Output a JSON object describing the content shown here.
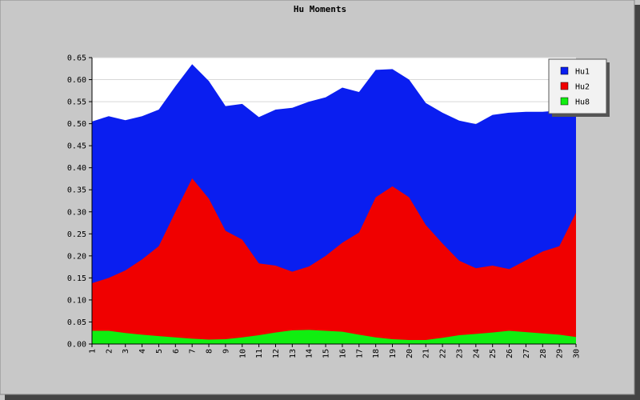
{
  "chart_data": {
    "type": "area",
    "title": "Hu Moments",
    "xlabel": "",
    "ylabel": "",
    "x": [
      1,
      2,
      3,
      4,
      5,
      6,
      7,
      8,
      9,
      10,
      11,
      12,
      13,
      14,
      15,
      16,
      17,
      18,
      19,
      20,
      21,
      22,
      23,
      24,
      25,
      26,
      27,
      28,
      29,
      30
    ],
    "ylim": [
      0,
      0.65
    ],
    "yticks": [
      "0.00",
      "0.05",
      "0.10",
      "0.15",
      "0.20",
      "0.25",
      "0.30",
      "0.35",
      "0.40",
      "0.45",
      "0.50",
      "0.55",
      "0.60",
      "0.65"
    ],
    "grid": true,
    "legend_position": "top-right",
    "series": [
      {
        "name": "Hu1",
        "color": "#0a1ef0",
        "values": [
          0.505,
          0.517,
          0.508,
          0.517,
          0.532,
          0.585,
          0.635,
          0.597,
          0.54,
          0.545,
          0.515,
          0.532,
          0.536,
          0.55,
          0.56,
          0.582,
          0.572,
          0.622,
          0.624,
          0.6,
          0.547,
          0.525,
          0.507,
          0.499,
          0.52,
          0.525,
          0.527,
          0.527,
          0.53,
          0.52
        ]
      },
      {
        "name": "Hu2",
        "color": "#f00000",
        "values": [
          0.138,
          0.15,
          0.167,
          0.192,
          0.222,
          0.3,
          0.376,
          0.33,
          0.257,
          0.237,
          0.183,
          0.178,
          0.164,
          0.176,
          0.2,
          0.23,
          0.253,
          0.333,
          0.358,
          0.333,
          0.27,
          0.228,
          0.189,
          0.172,
          0.178,
          0.17,
          0.19,
          0.21,
          0.222,
          0.298
        ]
      },
      {
        "name": "Hu8",
        "color": "#10ee10",
        "values": [
          0.03,
          0.03,
          0.025,
          0.021,
          0.018,
          0.015,
          0.012,
          0.01,
          0.011,
          0.015,
          0.02,
          0.026,
          0.031,
          0.032,
          0.03,
          0.028,
          0.021,
          0.015,
          0.011,
          0.009,
          0.009,
          0.014,
          0.02,
          0.023,
          0.026,
          0.03,
          0.027,
          0.024,
          0.021,
          0.016
        ]
      }
    ]
  }
}
